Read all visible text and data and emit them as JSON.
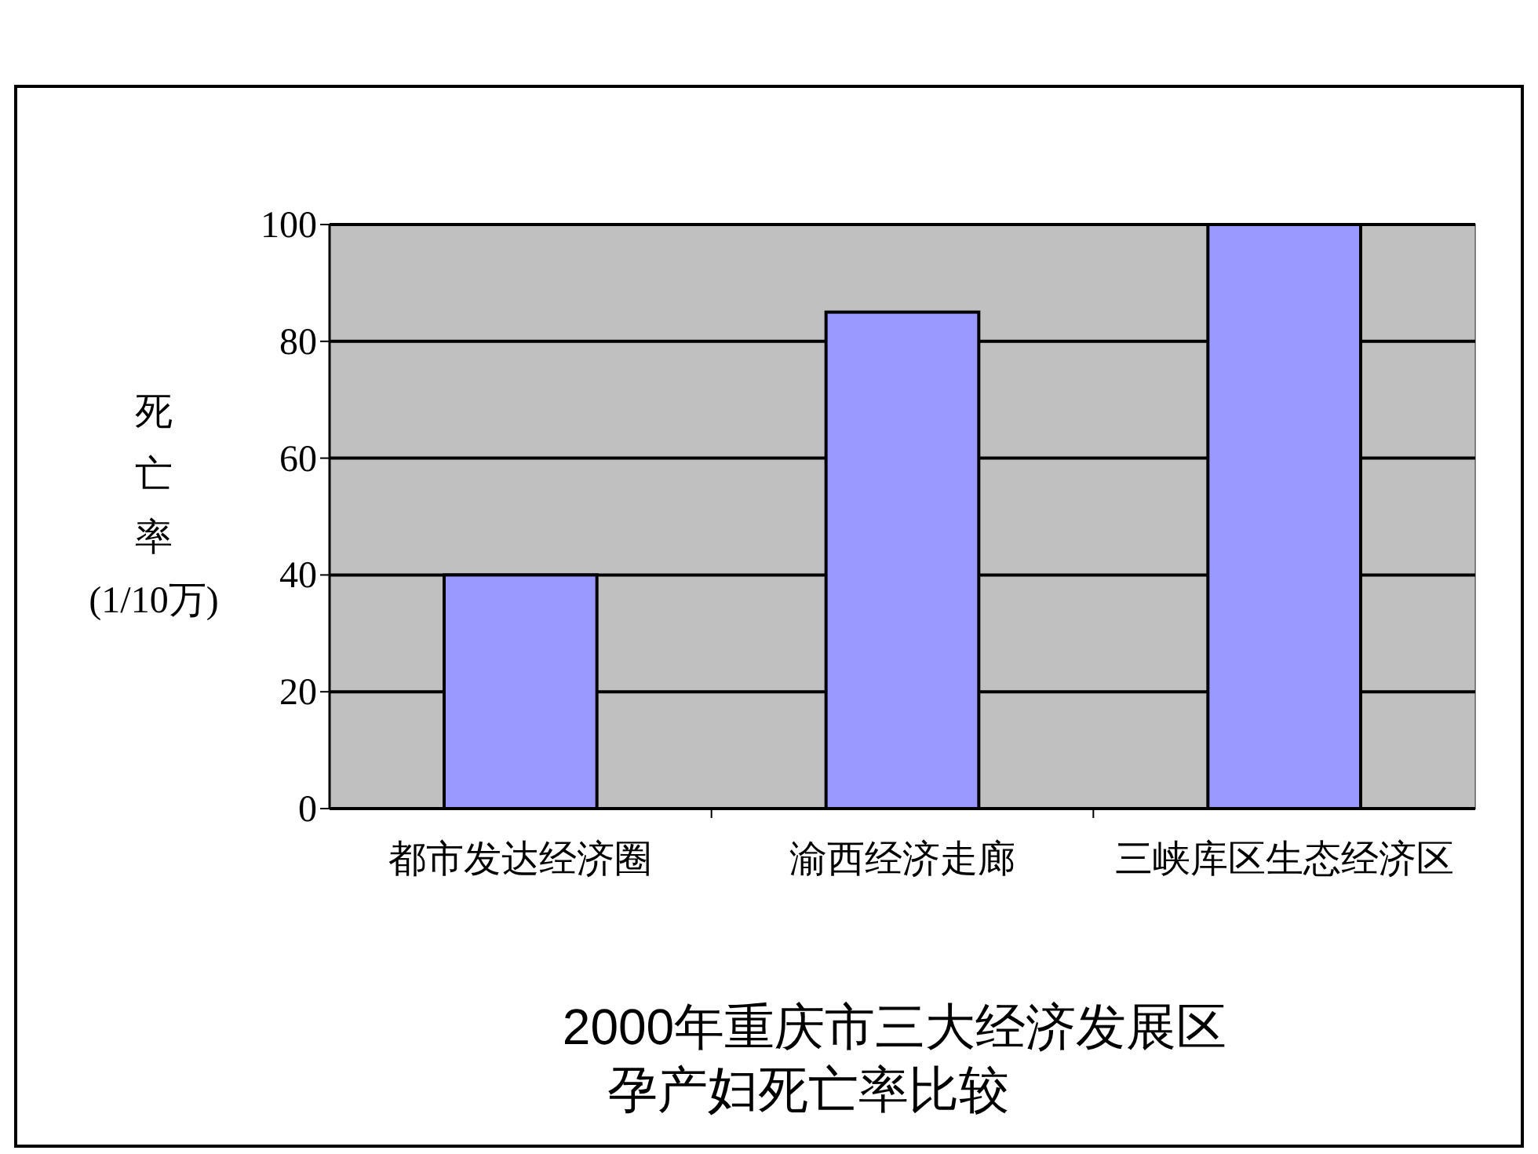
{
  "chart_data": {
    "type": "bar",
    "title": "2000年重庆市三大经济发展区",
    "subtitle": "孕产妇死亡率比较",
    "ylabel": "死亡率(1/10万)",
    "categories": [
      "都市发达经济圈",
      "渝西经济走廊",
      "三峡库区生态经济区"
    ],
    "values": [
      40,
      85,
      100
    ],
    "color": "#9999ff",
    "ylim": [
      0,
      100
    ],
    "yticks": [
      0,
      20,
      40,
      60,
      80,
      100
    ],
    "grid": "y"
  }
}
